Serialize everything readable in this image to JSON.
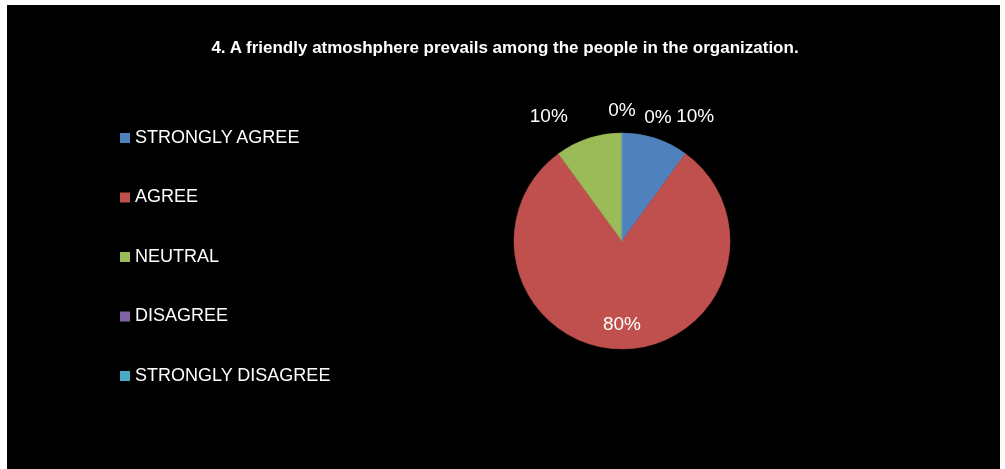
{
  "chart_data": {
    "type": "pie",
    "title": "4. A friendly atmoshphere prevails among the people in the organization.",
    "categories": [
      "STRONGLY AGREE",
      "AGREE",
      "NEUTRAL",
      "DISAGREE",
      "STRONGLY DISAGREE"
    ],
    "values": [
      10,
      80,
      10,
      0,
      0
    ],
    "colors": [
      "#4f81bd",
      "#c0504d",
      "#9bbb59",
      "#8064a2",
      "#4bacc6"
    ],
    "value_labels": [
      "10%",
      "80%",
      "10%",
      "0%",
      "0%"
    ],
    "legend": "left"
  }
}
